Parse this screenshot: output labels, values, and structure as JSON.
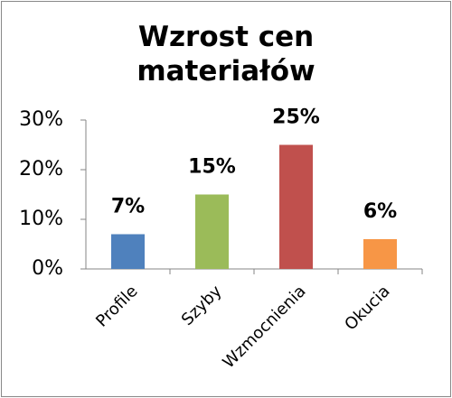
{
  "chart_data": {
    "type": "bar",
    "title": "Wzrost cen materiałów",
    "categories": [
      "Profile",
      "Szyby",
      "Wzmocnienia",
      "Okucia"
    ],
    "values": [
      7,
      15,
      25,
      6
    ],
    "value_labels": [
      "7%",
      "15%",
      "25%",
      "6%"
    ],
    "colors": [
      "#4f81bd",
      "#9bbb59",
      "#c0504d",
      "#f79646"
    ],
    "ylim": [
      0,
      30
    ],
    "yticks": [
      {
        "value": 0,
        "label": "0%"
      },
      {
        "value": 10,
        "label": "10%"
      },
      {
        "value": 20,
        "label": "20%"
      },
      {
        "value": 30,
        "label": "30%"
      }
    ],
    "grid": false
  }
}
